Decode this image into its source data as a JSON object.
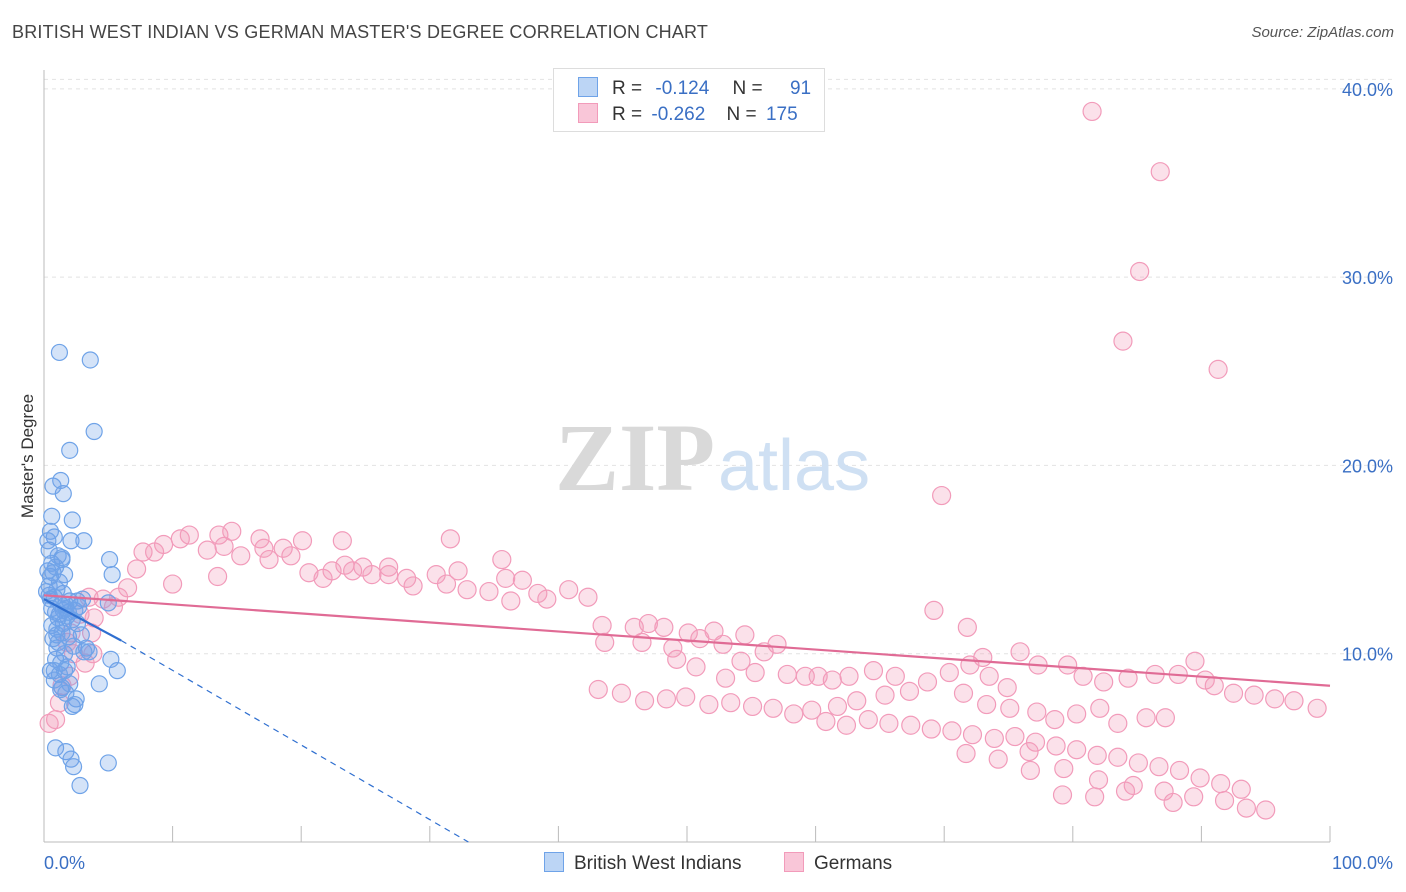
{
  "title": "BRITISH WEST INDIAN VS GERMAN MASTER'S DEGREE CORRELATION CHART",
  "source": "Source: ZipAtlas.com",
  "watermark": {
    "zip": "ZIP",
    "atlas": "atlas"
  },
  "legend": {
    "rows": [
      {
        "r_label": "R =",
        "r_value": "-0.124",
        "n_label": "N =",
        "n_value": "91"
      },
      {
        "r_label": "R =",
        "r_value": "-0.262",
        "n_label": "N =",
        "n_value": "175"
      }
    ]
  },
  "bottom_legend": {
    "series1": "British West Indians",
    "series2": "Germans"
  },
  "colors": {
    "series1": "#6fa3e8",
    "series1_line": "#2f6fd0",
    "series2": "#f29bba",
    "series2_line": "#e06b95",
    "tick_label": "#3a6fc4"
  },
  "chart_data": {
    "type": "scatter",
    "title": "BRITISH WEST INDIAN VS GERMAN MASTER'S DEGREE CORRELATION CHART",
    "xlabel": "",
    "ylabel": "Master's Degree",
    "xlim": [
      0,
      100
    ],
    "ylim": [
      0,
      41
    ],
    "x_tick_labels": [
      "0.0%",
      "100.0%"
    ],
    "y_ticks": [
      10,
      20,
      30,
      40
    ],
    "y_tick_labels": [
      "10.0%",
      "20.0%",
      "30.0%",
      "40.0%"
    ],
    "grid": "horizontal dashed",
    "legend_position": "top-center",
    "series": [
      {
        "name": "British West Indians",
        "r": -0.124,
        "n": 91,
        "trend": {
          "x": [
            0,
            6
          ],
          "y": [
            12.9,
            10.7
          ],
          "dashed_to": [
            33,
            0
          ]
        },
        "points": [
          [
            1.2,
            26
          ],
          [
            3.6,
            25.6
          ],
          [
            3.9,
            21.8
          ],
          [
            2,
            20.8
          ],
          [
            1.3,
            19.2
          ],
          [
            1.5,
            18.5
          ],
          [
            0.7,
            18.9
          ],
          [
            0.6,
            17.3
          ],
          [
            2.2,
            17.1
          ],
          [
            0.5,
            16.5
          ],
          [
            0.8,
            16.2
          ],
          [
            2.1,
            16
          ],
          [
            3.1,
            16
          ],
          [
            0.4,
            15.5
          ],
          [
            1.1,
            15.2
          ],
          [
            1.4,
            15
          ],
          [
            0.6,
            14.8
          ],
          [
            0.9,
            14.6
          ],
          [
            0.3,
            14.4
          ],
          [
            0.7,
            14.3
          ],
          [
            1.6,
            14.2
          ],
          [
            0.4,
            13.6
          ],
          [
            1.0,
            13.4
          ],
          [
            1.5,
            13.2
          ],
          [
            0.8,
            13.0
          ],
          [
            2.0,
            12.8
          ],
          [
            2.6,
            12.8
          ],
          [
            1.3,
            12.6
          ],
          [
            1.7,
            12.4
          ],
          [
            2.4,
            12.3
          ],
          [
            0.9,
            12.2
          ],
          [
            1.2,
            12.1
          ],
          [
            1.8,
            12.0
          ],
          [
            2.2,
            11.8
          ],
          [
            1.5,
            11.6
          ],
          [
            0.6,
            11.5
          ],
          [
            1.0,
            11.3
          ],
          [
            1.4,
            11.1
          ],
          [
            2.9,
            11.0
          ],
          [
            1.9,
            10.9
          ],
          [
            0.7,
            10.8
          ],
          [
            1.1,
            10.6
          ],
          [
            2.3,
            10.4
          ],
          [
            3.1,
            10.1
          ],
          [
            1.6,
            10.0
          ],
          [
            0.9,
            9.7
          ],
          [
            1.3,
            9.5
          ],
          [
            1.8,
            9.3
          ],
          [
            0.5,
            9.1
          ],
          [
            1.2,
            8.9
          ],
          [
            0.8,
            8.6
          ],
          [
            2.0,
            8.4
          ],
          [
            1.4,
            8.2
          ],
          [
            1.7,
            7.9
          ],
          [
            2.5,
            7.6
          ],
          [
            2.2,
            7.2
          ],
          [
            0.9,
            5.0
          ],
          [
            1.7,
            4.8
          ],
          [
            2.1,
            4.4
          ],
          [
            2.3,
            4.0
          ],
          [
            5.1,
            15.0
          ],
          [
            5.3,
            14.2
          ],
          [
            5.0,
            12.7
          ],
          [
            5.2,
            9.7
          ],
          [
            5.7,
            9.1
          ],
          [
            5.0,
            4.2
          ],
          [
            2.8,
            3.0
          ],
          [
            4.3,
            8.4
          ],
          [
            3.5,
            10.1
          ],
          [
            3.0,
            12.9
          ],
          [
            2.7,
            12.5
          ],
          [
            1.9,
            12.2
          ],
          [
            1.5,
            12.3
          ],
          [
            1.1,
            11.9
          ],
          [
            0.6,
            12.4
          ],
          [
            0.4,
            13.1
          ],
          [
            1.0,
            10.3
          ],
          [
            1.6,
            9.1
          ],
          [
            2.4,
            7.3
          ],
          [
            1.4,
            15.1
          ],
          [
            0.3,
            16.0
          ],
          [
            0.5,
            14.1
          ],
          [
            0.2,
            13.3
          ],
          [
            1.0,
            11.0
          ],
          [
            1.7,
            12.6
          ],
          [
            2.6,
            11.6
          ],
          [
            3.3,
            10.3
          ],
          [
            0.8,
            9.1
          ],
          [
            1.3,
            8.1
          ],
          [
            0.5,
            12.9
          ],
          [
            1.2,
            13.8
          ]
        ]
      },
      {
        "name": "Germans",
        "r": -0.262,
        "n": 175,
        "trend": {
          "x": [
            0,
            100
          ],
          "y": [
            13.1,
            8.3
          ]
        },
        "points": [
          [
            81.5,
            38.8
          ],
          [
            86.8,
            35.6
          ],
          [
            85.2,
            30.3
          ],
          [
            83.9,
            26.6
          ],
          [
            91.3,
            25.1
          ],
          [
            69.8,
            18.4
          ],
          [
            11.3,
            16.3
          ],
          [
            13.6,
            16.3
          ],
          [
            14.6,
            16.5
          ],
          [
            9.3,
            15.8
          ],
          [
            7.7,
            15.4
          ],
          [
            8.6,
            15.4
          ],
          [
            12.7,
            15.5
          ],
          [
            15.3,
            15.2
          ],
          [
            17.1,
            15.6
          ],
          [
            18.6,
            15.6
          ],
          [
            20.1,
            16.0
          ],
          [
            23.2,
            16.0
          ],
          [
            10.6,
            16.1
          ],
          [
            16.8,
            16.1
          ],
          [
            14.0,
            15.7
          ],
          [
            19.2,
            15.2
          ],
          [
            17.5,
            15.0
          ],
          [
            22.4,
            14.4
          ],
          [
            24.0,
            14.4
          ],
          [
            24.8,
            14.6
          ],
          [
            20.6,
            14.3
          ],
          [
            21.7,
            14.0
          ],
          [
            26.8,
            14.2
          ],
          [
            28.2,
            14.0
          ],
          [
            25.5,
            14.2
          ],
          [
            28.7,
            13.6
          ],
          [
            30.5,
            14.2
          ],
          [
            31.3,
            13.7
          ],
          [
            32.2,
            14.4
          ],
          [
            32.9,
            13.4
          ],
          [
            35.9,
            14.0
          ],
          [
            34.6,
            13.3
          ],
          [
            37.2,
            13.9
          ],
          [
            38.4,
            13.2
          ],
          [
            39.1,
            12.9
          ],
          [
            40.8,
            13.4
          ],
          [
            36.3,
            12.8
          ],
          [
            42.3,
            13.0
          ],
          [
            35.6,
            15.0
          ],
          [
            31.6,
            16.1
          ],
          [
            26.8,
            14.6
          ],
          [
            23.4,
            14.7
          ],
          [
            7.2,
            14.5
          ],
          [
            13.5,
            14.1
          ],
          [
            10.0,
            13.7
          ],
          [
            6.5,
            13.5
          ],
          [
            5.8,
            13.0
          ],
          [
            4.6,
            12.9
          ],
          [
            3.9,
            11.9
          ],
          [
            3.5,
            13.0
          ],
          [
            5.4,
            12.5
          ],
          [
            2.8,
            12.1
          ],
          [
            3.7,
            11.1
          ],
          [
            2.1,
            11.1
          ],
          [
            2.3,
            10.0
          ],
          [
            3.8,
            10.0
          ],
          [
            1.4,
            8.3
          ],
          [
            2.0,
            8.8
          ],
          [
            1.2,
            7.4
          ],
          [
            0.9,
            6.5
          ],
          [
            0.4,
            6.3
          ],
          [
            1.8,
            10.6
          ],
          [
            3.2,
            9.5
          ],
          [
            43.4,
            11.5
          ],
          [
            45.9,
            11.4
          ],
          [
            47.0,
            11.6
          ],
          [
            48.2,
            11.4
          ],
          [
            50.1,
            11.1
          ],
          [
            52.1,
            11.2
          ],
          [
            54.5,
            11.0
          ],
          [
            46.5,
            10.6
          ],
          [
            43.6,
            10.6
          ],
          [
            48.9,
            10.3
          ],
          [
            51.0,
            10.8
          ],
          [
            52.8,
            10.5
          ],
          [
            57.0,
            10.5
          ],
          [
            54.2,
            9.6
          ],
          [
            56.0,
            10.1
          ],
          [
            50.7,
            9.3
          ],
          [
            49.2,
            9.7
          ],
          [
            53.0,
            8.7
          ],
          [
            55.3,
            9.0
          ],
          [
            57.8,
            8.9
          ],
          [
            59.2,
            8.8
          ],
          [
            60.2,
            8.8
          ],
          [
            61.3,
            8.6
          ],
          [
            62.6,
            8.8
          ],
          [
            64.5,
            9.1
          ],
          [
            66.2,
            8.8
          ],
          [
            68.7,
            8.5
          ],
          [
            70.4,
            9.0
          ],
          [
            72.0,
            9.4
          ],
          [
            73.5,
            8.8
          ],
          [
            75.9,
            10.1
          ],
          [
            77.3,
            9.4
          ],
          [
            79.6,
            9.4
          ],
          [
            80.8,
            8.8
          ],
          [
            82.4,
            8.5
          ],
          [
            84.3,
            8.7
          ],
          [
            86.4,
            8.9
          ],
          [
            88.2,
            8.9
          ],
          [
            89.5,
            9.6
          ],
          [
            90.3,
            8.6
          ],
          [
            91.0,
            8.3
          ],
          [
            92.5,
            7.9
          ],
          [
            94.1,
            7.8
          ],
          [
            95.7,
            7.6
          ],
          [
            97.2,
            7.5
          ],
          [
            99.0,
            7.1
          ],
          [
            71.5,
            7.9
          ],
          [
            73.3,
            7.3
          ],
          [
            75.1,
            7.1
          ],
          [
            77.2,
            6.9
          ],
          [
            78.6,
            6.5
          ],
          [
            80.3,
            6.8
          ],
          [
            82.1,
            7.1
          ],
          [
            83.5,
            6.3
          ],
          [
            85.7,
            6.6
          ],
          [
            87.2,
            6.6
          ],
          [
            67.3,
            8.0
          ],
          [
            65.4,
            7.8
          ],
          [
            63.2,
            7.5
          ],
          [
            61.7,
            7.2
          ],
          [
            59.7,
            7.0
          ],
          [
            58.3,
            6.8
          ],
          [
            56.7,
            7.1
          ],
          [
            55.1,
            7.2
          ],
          [
            53.4,
            7.4
          ],
          [
            51.7,
            7.3
          ],
          [
            49.9,
            7.7
          ],
          [
            48.4,
            7.6
          ],
          [
            46.7,
            7.5
          ],
          [
            44.9,
            7.9
          ],
          [
            43.1,
            8.1
          ],
          [
            60.8,
            6.4
          ],
          [
            62.4,
            6.2
          ],
          [
            64.1,
            6.5
          ],
          [
            65.7,
            6.3
          ],
          [
            67.4,
            6.2
          ],
          [
            69.0,
            6.0
          ],
          [
            70.6,
            5.9
          ],
          [
            72.2,
            5.7
          ],
          [
            73.9,
            5.5
          ],
          [
            75.5,
            5.6
          ],
          [
            77.1,
            5.3
          ],
          [
            78.7,
            5.1
          ],
          [
            80.3,
            4.9
          ],
          [
            81.9,
            4.6
          ],
          [
            83.5,
            4.5
          ],
          [
            85.1,
            4.2
          ],
          [
            86.7,
            4.0
          ],
          [
            88.3,
            3.8
          ],
          [
            89.9,
            3.4
          ],
          [
            91.5,
            3.1
          ],
          [
            93.1,
            2.8
          ],
          [
            71.7,
            4.7
          ],
          [
            74.2,
            4.4
          ],
          [
            76.6,
            4.8
          ],
          [
            79.3,
            3.9
          ],
          [
            82.0,
            3.3
          ],
          [
            84.7,
            3.0
          ],
          [
            87.1,
            2.7
          ],
          [
            89.4,
            2.4
          ],
          [
            91.8,
            2.2
          ],
          [
            76.7,
            3.8
          ],
          [
            81.7,
            2.4
          ],
          [
            87.8,
            2.1
          ],
          [
            93.5,
            1.8
          ],
          [
            95.0,
            1.7
          ],
          [
            79.2,
            2.5
          ],
          [
            84.1,
            2.7
          ],
          [
            74.9,
            8.2
          ],
          [
            69.2,
            12.3
          ],
          [
            71.8,
            11.4
          ],
          [
            73.0,
            9.8
          ]
        ]
      }
    ]
  }
}
